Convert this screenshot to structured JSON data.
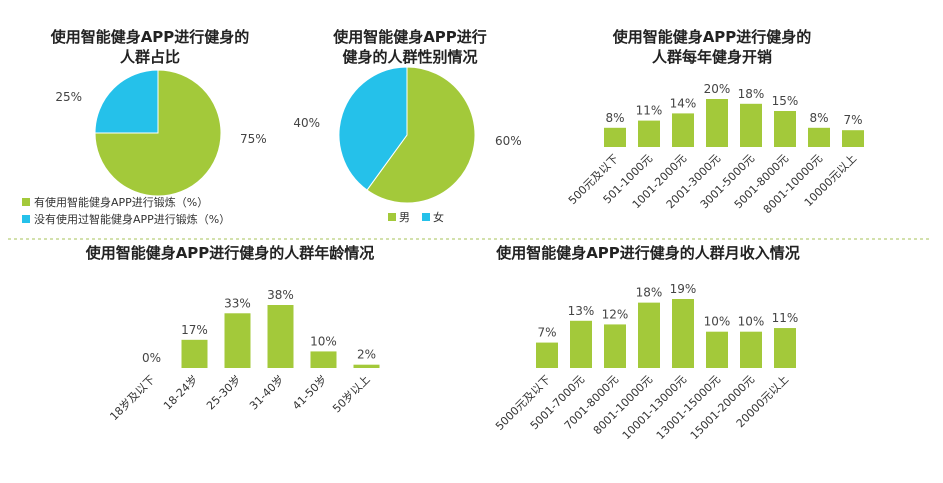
{
  "chart_data": [
    {
      "id": "app-usage",
      "type": "pie",
      "title": [
        "使用智能健身APP进行健身的",
        "人群占比"
      ],
      "slices": [
        {
          "label": "有使用智能健身APP进行锻炼（%）",
          "value": 75,
          "value_label": "75%"
        },
        {
          "label": "没有使用过智能健身APP进行锻炼（%）",
          "value": 25,
          "value_label": "25%"
        }
      ],
      "colors": [
        "#a3c93a",
        "#25c1ea"
      ],
      "legend_position": "bottom"
    },
    {
      "id": "gender",
      "type": "pie",
      "title": [
        "使用智能健身APP进行",
        "健身的人群性别情况"
      ],
      "slices": [
        {
          "label": "男",
          "value": 60,
          "value_label": "60%"
        },
        {
          "label": "女",
          "value": 40,
          "value_label": "40%"
        }
      ],
      "colors": [
        "#a3c93a",
        "#25c1ea"
      ],
      "legend_position": "bottom"
    },
    {
      "id": "annual-spend",
      "type": "bar",
      "title": [
        "使用智能健身APP进行健身的",
        "人群每年健身开销"
      ],
      "categories": [
        "500元及以下",
        "501-1000元",
        "1001-2000元",
        "2001-3000元",
        "3001-5000元",
        "5001-8000元",
        "8001-10000元",
        "10000元以上"
      ],
      "values": [
        8,
        11,
        14,
        20,
        18,
        15,
        8,
        7
      ],
      "value_labels": [
        "8%",
        "11%",
        "14%",
        "20%",
        "18%",
        "15%",
        "8%",
        "7%"
      ],
      "color": "#a3c93a",
      "ylim": [
        0,
        20
      ]
    },
    {
      "id": "age",
      "type": "bar",
      "title": [
        "使用智能健身APP进行健身的人群年龄情况"
      ],
      "categories": [
        "18岁及以下",
        "18-24岁",
        "25-30岁",
        "31-40岁",
        "41-50岁",
        "50岁以上"
      ],
      "values": [
        0,
        17,
        33,
        38,
        10,
        2
      ],
      "value_labels": [
        "0%",
        "17%",
        "33%",
        "38%",
        "10%",
        "2%"
      ],
      "color": "#a3c93a",
      "ylim": [
        0,
        38
      ]
    },
    {
      "id": "monthly-income",
      "type": "bar",
      "title": [
        "使用智能健身APP进行健身的人群月收入情况"
      ],
      "categories": [
        "5000元及以下",
        "5001-7000元",
        "7001-8000元",
        "8001-10000元",
        "10001-13000元",
        "13001-15000元",
        "15001-20000元",
        "20000元以上"
      ],
      "values": [
        7,
        13,
        12,
        18,
        19,
        10,
        10,
        11
      ],
      "value_labels": [
        "7%",
        "13%",
        "12%",
        "18%",
        "19%",
        "10%",
        "10%",
        "11%"
      ],
      "color": "#a3c93a",
      "ylim": [
        0,
        19
      ]
    }
  ]
}
